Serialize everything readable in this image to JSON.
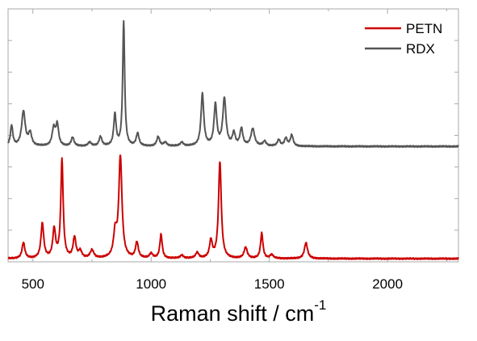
{
  "chart_data": {
    "type": "line",
    "xlabel_main": "Raman shift / cm",
    "xlabel_sup": "-1",
    "xlim": [
      395,
      2300
    ],
    "ylim": [
      0,
      8
    ],
    "x_ticks": [
      500,
      1000,
      1500,
      2000
    ],
    "x_tick_labels": [
      "500",
      "1000",
      "1500",
      "2000"
    ],
    "y_tick_labels_shown": false,
    "grid": false,
    "legend": {
      "placement": "top-right",
      "entries": [
        "PETN",
        "RDX"
      ]
    },
    "series": [
      {
        "name": "PETN",
        "color": "#cc0000",
        "baseline": 0.1,
        "peaks": [
          {
            "x": 460,
            "h": 0.5,
            "w": 7
          },
          {
            "x": 540,
            "h": 1.1,
            "w": 7
          },
          {
            "x": 590,
            "h": 0.9,
            "w": 7
          },
          {
            "x": 623,
            "h": 3.1,
            "w": 6
          },
          {
            "x": 676,
            "h": 0.65,
            "w": 7
          },
          {
            "x": 700,
            "h": 0.22,
            "w": 8
          },
          {
            "x": 750,
            "h": 0.25,
            "w": 9
          },
          {
            "x": 848,
            "h": 0.75,
            "w": 8
          },
          {
            "x": 870,
            "h": 3.2,
            "w": 8
          },
          {
            "x": 940,
            "h": 0.5,
            "w": 7
          },
          {
            "x": 1000,
            "h": 0.15,
            "w": 8
          },
          {
            "x": 1042,
            "h": 0.75,
            "w": 6
          },
          {
            "x": 1130,
            "h": 0.1,
            "w": 8
          },
          {
            "x": 1195,
            "h": 0.18,
            "w": 8
          },
          {
            "x": 1253,
            "h": 0.55,
            "w": 7
          },
          {
            "x": 1291,
            "h": 3.05,
            "w": 7
          },
          {
            "x": 1400,
            "h": 0.35,
            "w": 8
          },
          {
            "x": 1468,
            "h": 0.8,
            "w": 6
          },
          {
            "x": 1510,
            "h": 0.12,
            "w": 8
          },
          {
            "x": 1655,
            "h": 0.5,
            "w": 8
          }
        ]
      },
      {
        "name": "RDX",
        "color": "#555555",
        "baseline": 3.65,
        "peaks": [
          {
            "x": 410,
            "h": 0.65,
            "w": 6
          },
          {
            "x": 460,
            "h": 1.1,
            "w": 9
          },
          {
            "x": 488,
            "h": 0.4,
            "w": 8
          },
          {
            "x": 588,
            "h": 0.55,
            "w": 8
          },
          {
            "x": 603,
            "h": 0.65,
            "w": 7
          },
          {
            "x": 668,
            "h": 0.28,
            "w": 7
          },
          {
            "x": 740,
            "h": 0.12,
            "w": 8
          },
          {
            "x": 786,
            "h": 0.3,
            "w": 7
          },
          {
            "x": 847,
            "h": 1.0,
            "w": 6
          },
          {
            "x": 884,
            "h": 3.95,
            "w": 5
          },
          {
            "x": 943,
            "h": 0.4,
            "w": 7
          },
          {
            "x": 1030,
            "h": 0.3,
            "w": 7
          },
          {
            "x": 1060,
            "h": 0.12,
            "w": 8
          },
          {
            "x": 1130,
            "h": 0.12,
            "w": 8
          },
          {
            "x": 1217,
            "h": 1.65,
            "w": 7
          },
          {
            "x": 1272,
            "h": 1.3,
            "w": 7
          },
          {
            "x": 1310,
            "h": 1.5,
            "w": 8
          },
          {
            "x": 1350,
            "h": 0.4,
            "w": 7
          },
          {
            "x": 1382,
            "h": 0.55,
            "w": 7
          },
          {
            "x": 1430,
            "h": 0.55,
            "w": 9
          },
          {
            "x": 1480,
            "h": 0.15,
            "w": 8
          },
          {
            "x": 1540,
            "h": 0.2,
            "w": 7
          },
          {
            "x": 1570,
            "h": 0.25,
            "w": 7
          },
          {
            "x": 1595,
            "h": 0.35,
            "w": 7
          }
        ]
      }
    ]
  }
}
